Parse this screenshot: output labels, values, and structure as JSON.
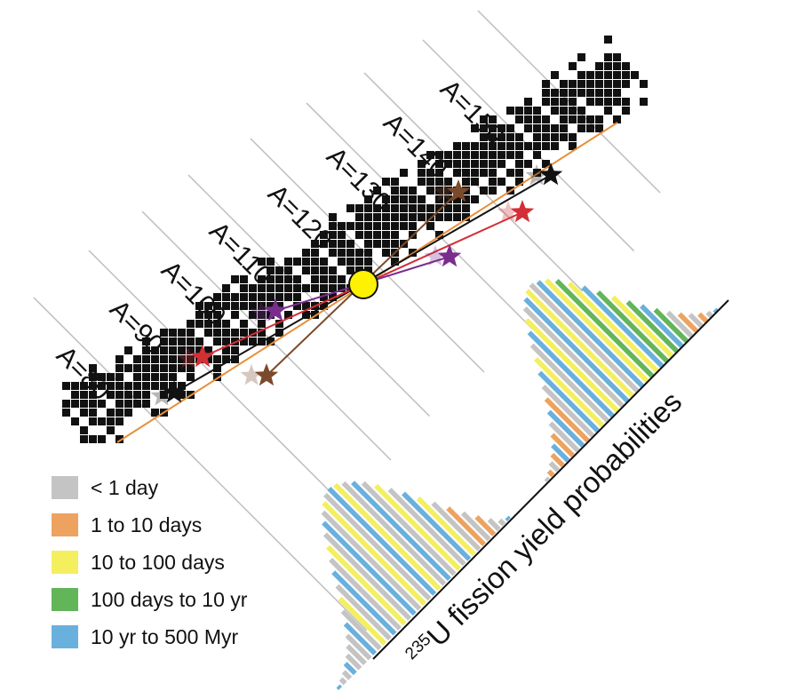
{
  "mass_labels": [
    "A=80",
    "A=90",
    "A=100",
    "A=110",
    "A=120",
    "A=130",
    "A=140",
    "A=150"
  ],
  "axis_title": {
    "superscript": "235",
    "text": "U fission yield probabilities"
  },
  "legend": [
    {
      "label": "< 1 day",
      "color": "#c4c4c4"
    },
    {
      "label": "1 to 10 days",
      "color": "#eda35f"
    },
    {
      "label": "10 to 100 days",
      "color": "#f4ef5e"
    },
    {
      "label": "100 days to 10 yr",
      "color": "#63b55a"
    },
    {
      "label": "10 yr to 500 Myr",
      "color": "#6ab0dd"
    }
  ],
  "colors": {
    "nuclide": "#111111",
    "fissioning_nucleus": "#fff200",
    "symmetry_line": "#e88f3a",
    "pair_black": "#111111",
    "pair_red": "#d32f36",
    "pair_purple": "#7b2d8e",
    "pair_brown": "#7b4a2a"
  },
  "chart_data": {
    "type": "bar",
    "series": [
      {
        "name": "light fragment peak",
        "values": [
          2,
          4,
          6,
          9,
          12,
          16,
          21,
          27,
          34,
          41,
          48,
          56,
          63,
          70,
          77,
          83,
          88,
          92,
          95,
          96,
          95,
          92,
          88,
          83,
          76,
          68,
          60,
          51,
          42,
          33,
          24,
          16,
          9,
          4,
          2
        ],
        "colors": [
          "b",
          "g",
          "g",
          "b",
          "g",
          "g",
          "g",
          "b",
          "g",
          "y",
          "g",
          "b",
          "g",
          "y",
          "g",
          "b",
          "g",
          "y",
          "g",
          "b",
          "y",
          "g",
          "b",
          "g",
          "y",
          "g",
          "b",
          "y",
          "g",
          "o",
          "g",
          "o",
          "g",
          "g",
          "b"
        ]
      },
      {
        "name": "heavy fragment peak",
        "values": [
          2,
          4,
          7,
          10,
          14,
          19,
          25,
          31,
          38,
          45,
          53,
          61,
          69,
          76,
          83,
          89,
          93,
          96,
          97,
          95,
          92,
          87,
          80,
          72,
          63,
          54,
          45,
          37,
          29,
          22,
          16,
          11,
          7,
          4,
          2
        ],
        "colors": [
          "g",
          "o",
          "g",
          "o",
          "b",
          "o",
          "g",
          "b",
          "o",
          "g",
          "b",
          "y",
          "g",
          "b",
          "y",
          "g",
          "b",
          "y",
          "g",
          "b",
          "y",
          "gr",
          "y",
          "b",
          "gr",
          "y",
          "gr",
          "b",
          "gr",
          "g",
          "o",
          "g",
          "o",
          "g",
          "b"
        ]
      }
    ]
  }
}
